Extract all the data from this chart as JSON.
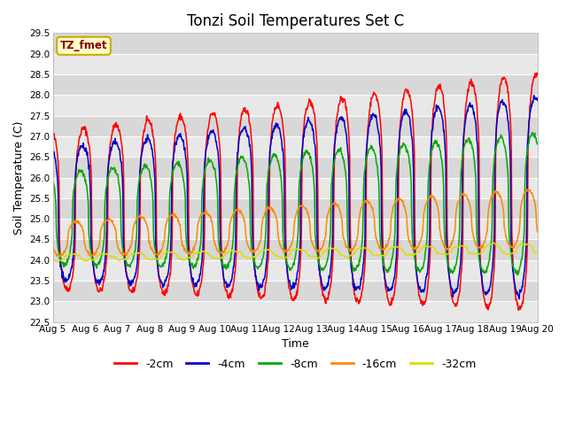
{
  "title": "Tonzi Soil Temperatures Set C",
  "xlabel": "Time",
  "ylabel": "Soil Temperature (C)",
  "ylim": [
    22.5,
    29.5
  ],
  "label_annotation": "TZ_fmet",
  "series_labels": [
    "-2cm",
    "-4cm",
    "-8cm",
    "-16cm",
    "-32cm"
  ],
  "series_colors": [
    "#ff0000",
    "#0000cc",
    "#00aa00",
    "#ff8800",
    "#dddd00"
  ],
  "background_color": "#f0f0f0",
  "plot_bg_color": "#f0f0f0",
  "x_tick_labels": [
    "Aug 5",
    "Aug 6",
    "Aug 7",
    "Aug 8",
    "Aug 9",
    "Aug 10",
    "Aug 11",
    "Aug 12",
    "Aug 13",
    "Aug 14",
    "Aug 15",
    "Aug 16",
    "Aug 17",
    "Aug 18",
    "Aug 19",
    "Aug 20"
  ],
  "x_tick_positions": [
    0,
    1,
    2,
    3,
    4,
    5,
    6,
    7,
    8,
    9,
    10,
    11,
    12,
    13,
    14,
    15
  ],
  "title_fontsize": 12,
  "axis_label_fontsize": 9,
  "tick_fontsize": 7.5,
  "legend_fontsize": 9
}
